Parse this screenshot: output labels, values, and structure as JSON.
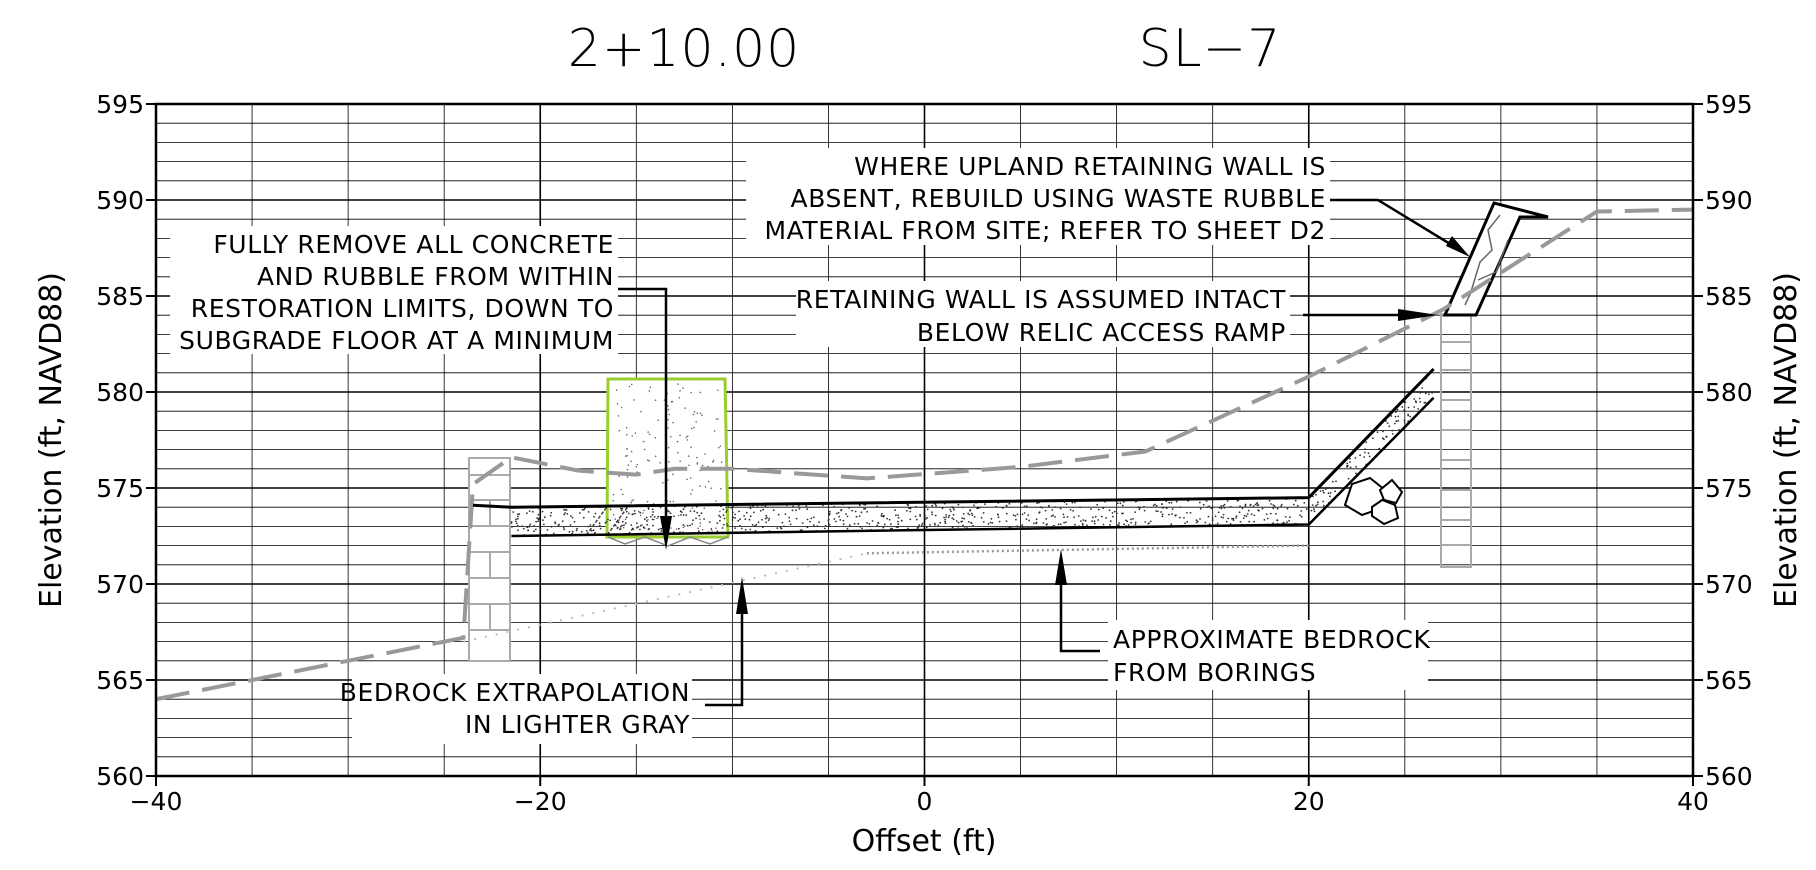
{
  "header": {
    "station": "2+10.00",
    "section_id": "SL−7"
  },
  "axes": {
    "xlabel": "Offset (ft)",
    "ylabel_left": "Elevation (ft, NAVD88)",
    "ylabel_right": "Elevation (ft, NAVD88)",
    "xlim": [
      -40,
      40
    ],
    "ylim": [
      560,
      595
    ],
    "x_ticks": [
      "−40",
      "−20",
      "0",
      "20",
      "40"
    ],
    "y_ticks": [
      "560",
      "565",
      "570",
      "575",
      "580",
      "585",
      "590",
      "595"
    ]
  },
  "notes": {
    "remove_concrete": [
      "FULLY REMOVE ALL CONCRETE",
      "AND RUBBLE FROM WITHIN",
      "RESTORATION LIMITS, DOWN TO",
      "SUBGRADE FLOOR AT A MINIMUM"
    ],
    "upland_wall": [
      "WHERE UPLAND RETAINING WALL IS",
      "ABSENT, REBUILD USING WASTE RUBBLE",
      "MATERIAL FROM SITE; REFER TO SHEET D2"
    ],
    "wall_intact": [
      "RETAINING WALL IS ASSUMED INTACT",
      "BELOW RELIC ACCESS RAMP"
    ],
    "bedrock_borings": [
      "APPROXIMATE BEDROCK",
      "FROM BORINGS"
    ],
    "bedrock_extrapolation": [
      "BEDROCK EXTRAPOLATION",
      "IN LIGHTER GRAY"
    ]
  },
  "colors": {
    "grid": "#000000",
    "existing_ground": "#999999",
    "concrete_removal": "#9acd32",
    "wall": "#aaaaaa",
    "bedrock_borings": "#999999",
    "bedrock_extrapolation": "#bbbbbb"
  },
  "chart_data": {
    "type": "line",
    "xlabel": "Offset (ft)",
    "ylabel": "Elevation (ft, NAVD88)",
    "xlim": [
      -40,
      40
    ],
    "ylim": [
      560,
      595
    ],
    "grid": true,
    "series": [
      {
        "x": [
          -40,
          -30,
          -24,
          -23.5,
          -21.5,
          -18,
          -15,
          -13,
          -10,
          -3,
          5,
          11.5,
          20,
          27,
          35,
          40
        ],
        "y": [
          564,
          566,
          567.2,
          575.2,
          576.6,
          575.9,
          575.7,
          576,
          576,
          575.5,
          576.1,
          576.9,
          580.8,
          584.3,
          589.4,
          589.5
        ]
      },
      {
        "x": [
          -23.5,
          -21.5,
          20,
          26.5
        ],
        "y": [
          574.1,
          574,
          574.5,
          581.2
        ]
      },
      {
        "x": [
          -21.5,
          20,
          26.5
        ],
        "y": [
          572.5,
          573.1,
          579.7
        ]
      },
      {
        "x": [
          -3,
          20
        ],
        "y": [
          571.6,
          572
        ]
      },
      {
        "x": [
          -24,
          -3
        ],
        "y": [
          567,
          571.6
        ]
      }
    ]
  }
}
